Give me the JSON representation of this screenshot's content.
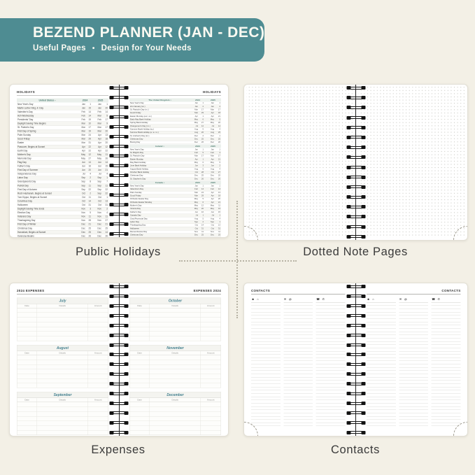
{
  "banner": {
    "title": "BEZEND PLANNER (JAN - DEC)",
    "subtitle_left": "Useful Pages",
    "bullet": "•",
    "subtitle_right": "Design for Your Needs"
  },
  "captions": {
    "holidays": "Public Holidays",
    "dotted": "Dotted Note Pages",
    "expenses": "Expenses",
    "contacts": "Contacts"
  },
  "holidays_spread": {
    "page_title": "HOLIDAYS",
    "sections": {
      "us": {
        "region": "United States",
        "years": [
          "2024",
          "2025"
        ],
        "rows": [
          [
            "New Year's Day",
            "Jan",
            "1",
            "Jan",
            "1"
          ],
          [
            "Martin Luther King Jr. Day",
            "Jan",
            "15",
            "Jan",
            "20"
          ],
          [
            "Valentine's Day",
            "Feb",
            "14",
            "Feb",
            "14"
          ],
          [
            "Ash Wednesday",
            "Feb",
            "14",
            "Mar",
            "5"
          ],
          [
            "Presidents' Day",
            "Feb",
            "19",
            "Feb",
            "17"
          ],
          [
            "Daylight Saving Time Begins",
            "Mar",
            "10",
            "Mar",
            "9"
          ],
          [
            "St. Patrick's Day",
            "Mar",
            "17",
            "Mar",
            "17"
          ],
          [
            "First Day of Spring",
            "Mar",
            "19",
            "Mar",
            "20"
          ],
          [
            "Palm Sunday",
            "Mar",
            "24",
            "Apr",
            "13"
          ],
          [
            "Good Friday",
            "Mar",
            "29",
            "Apr",
            "18"
          ],
          [
            "Easter",
            "Mar",
            "31",
            "Apr",
            "20"
          ],
          [
            "Passover, Begins at Sunset",
            "Apr",
            "22",
            "Apr",
            "12"
          ],
          [
            "Earth Day",
            "Apr",
            "22",
            "Apr",
            "22"
          ],
          [
            "Mother's Day",
            "May",
            "12",
            "May",
            "11"
          ],
          [
            "Memorial Day",
            "May",
            "27",
            "May",
            "26"
          ],
          [
            "Flag Day",
            "Jun",
            "14",
            "Jun",
            "14"
          ],
          [
            "Father's Day",
            "Jun",
            "16",
            "Jun",
            "15"
          ],
          [
            "First Day of Summer",
            "Jun",
            "20",
            "Jun",
            "21"
          ],
          [
            "Independence Day",
            "Jul",
            "4",
            "Jul",
            "4"
          ],
          [
            "Labor Day",
            "Sep",
            "2",
            "Sep",
            "1"
          ],
          [
            "Grandparents Day",
            "Sep",
            "8",
            "Sep",
            "7"
          ],
          [
            "Patriot Day",
            "Sep",
            "11",
            "Sep",
            "11"
          ],
          [
            "First Day of Autumn",
            "Sep",
            "22",
            "Sep",
            "22"
          ],
          [
            "Rosh Hashanah, Begins at Sunset",
            "Oct",
            "2",
            "Sep",
            "22"
          ],
          [
            "Yom Kippur, Begins at Sunset",
            "Oct",
            "11",
            "Oct",
            "1"
          ],
          [
            "Columbus Day",
            "Oct",
            "14",
            "Oct",
            "13"
          ],
          [
            "Halloween",
            "Oct",
            "31",
            "Oct",
            "31"
          ],
          [
            "Daylight Saving Time Ends",
            "Nov",
            "3",
            "Nov",
            "2"
          ],
          [
            "Election Day",
            "Nov",
            "5",
            "Nov",
            "4"
          ],
          [
            "Veterans Day",
            "Nov",
            "11",
            "Nov",
            "11"
          ],
          [
            "Thanksgiving Day",
            "Nov",
            "28",
            "Nov",
            "27"
          ],
          [
            "First Day of Winter",
            "Dec",
            "21",
            "Dec",
            "21"
          ],
          [
            "Christmas Day",
            "Dec",
            "25",
            "Dec",
            "25"
          ],
          [
            "Hanukkah, Begins at Sunset",
            "Dec",
            "25",
            "Dec",
            "14"
          ],
          [
            "Kwanzaa Begins",
            "Dec",
            "26",
            "Dec",
            "26"
          ],
          [
            "New Year's Eve",
            "Dec",
            "31",
            "Dec",
            "31"
          ]
        ]
      },
      "uk": {
        "region": "The United Kingdom",
        "years": [
          "2024",
          "2025"
        ],
        "rows": [
          [
            "New Year's Day",
            "Jan",
            "1",
            "Jan",
            "1"
          ],
          [
            "2nd January (sc.)",
            "Jan",
            "2",
            "Jan",
            "2"
          ],
          [
            "St. Patrick's Day (n.i.)",
            "Mar",
            "17",
            "Mar",
            "17"
          ],
          [
            "Good Friday",
            "Mar",
            "29",
            "Apr",
            "18"
          ],
          [
            "Easter Monday (exc. sc.)",
            "Apr",
            "1",
            "Apr",
            "21"
          ],
          [
            "Early May Bank Holiday",
            "May",
            "6",
            "May",
            "5"
          ],
          [
            "Spring Bank Holiday",
            "May",
            "27",
            "May",
            "26"
          ],
          [
            "Orangemen's Day (n.i.)",
            "Jul",
            "12",
            "Jul",
            "14"
          ],
          [
            "Summer Bank Holiday (sc.)",
            "Aug",
            "5",
            "Aug",
            "4"
          ],
          [
            "Summer Bank Holiday (e. w. n.i.)",
            "Aug",
            "26",
            "Aug",
            "25"
          ],
          [
            "St. Andrew's Day (sc.)",
            "Dec",
            "2",
            "Dec",
            "1"
          ],
          [
            "Christmas Day",
            "Dec",
            "25",
            "Dec",
            "25"
          ],
          [
            "Boxing Day",
            "Dec",
            "26",
            "Dec",
            "26"
          ]
        ]
      },
      "ireland": {
        "region": "Ireland",
        "years": [
          "2024",
          "2025"
        ],
        "rows": [
          [
            "New Year's Day",
            "Jan",
            "1",
            "Jan",
            "1"
          ],
          [
            "St. Brigid's Day",
            "Feb",
            "5",
            "Feb",
            "3"
          ],
          [
            "St. Patrick's Day",
            "Mar",
            "17",
            "Mar",
            "17"
          ],
          [
            "Easter Monday",
            "Apr",
            "1",
            "Apr",
            "21"
          ],
          [
            "May Bank Holiday",
            "May",
            "6",
            "May",
            "5"
          ],
          [
            "June Bank Holiday",
            "Jun",
            "3",
            "Jun",
            "2"
          ],
          [
            "August Bank Holiday",
            "Aug",
            "5",
            "Aug",
            "4"
          ],
          [
            "October Bank Holiday",
            "Oct",
            "28",
            "Oct",
            "27"
          ],
          [
            "Christmas Day",
            "Dec",
            "25",
            "Dec",
            "25"
          ],
          [
            "St. Stephen's Day",
            "Dec",
            "26",
            "Dec",
            "26"
          ]
        ]
      },
      "canada": {
        "region": "Canada",
        "years": [
          "2024",
          "2025"
        ],
        "rows": [
          [
            "New Year's Day",
            "Jan",
            "1",
            "Jan",
            "1"
          ],
          [
            "Valentine's Day",
            "Feb",
            "14",
            "Feb",
            "14"
          ],
          [
            "Palm Sunday",
            "Mar",
            "24",
            "Apr",
            "13"
          ],
          [
            "Good Friday",
            "Mar",
            "29",
            "Apr",
            "18"
          ],
          [
            "Orthodox Easter Day",
            "May",
            "5",
            "Apr",
            "20"
          ],
          [
            "Orthodox Easter Monday",
            "May",
            "6",
            "Apr",
            "21"
          ],
          [
            "Mother's Day",
            "May",
            "12",
            "May",
            "11"
          ],
          [
            "Victoria Day",
            "May",
            "20",
            "May",
            "19"
          ],
          [
            "Father's Day",
            "Jun",
            "16",
            "Jun",
            "15"
          ],
          [
            "Canada Day",
            "Jul",
            "1",
            "Jul",
            "1"
          ],
          [
            "Civic/Provincial Day",
            "Aug",
            "5",
            "Aug",
            "4"
          ],
          [
            "Labor Day",
            "Sep",
            "2",
            "Sep",
            "1"
          ],
          [
            "Thanksgiving Day",
            "Oct",
            "14",
            "Oct",
            "13"
          ],
          [
            "Halloween",
            "Oct",
            "31",
            "Oct",
            "31"
          ],
          [
            "Remembrance Day",
            "Nov",
            "11",
            "Nov",
            "11"
          ],
          [
            "Christmas Day",
            "Dec",
            "25",
            "Dec",
            "25"
          ],
          [
            "Boxing Day",
            "Dec",
            "26",
            "Dec",
            "26"
          ],
          [
            "New Year's Eve",
            "Dec",
            "31",
            "Dec",
            "31"
          ]
        ]
      }
    }
  },
  "expenses_spread": {
    "left_header": "2024 EXPENSES",
    "right_header": "EXPENSES 2024",
    "columns": [
      "Date",
      "Details",
      "Amount"
    ],
    "left_months": [
      "July",
      "August",
      "September"
    ],
    "right_months": [
      "October",
      "November",
      "December"
    ],
    "rows_per_month": 7
  },
  "contacts_spread": {
    "left_header": "CONTACTS",
    "right_header": "CONTACTS",
    "columns": [
      {
        "icons": [
          {
            "name": "person-icon",
            "glyph": "☻"
          },
          {
            "name": "home-icon",
            "glyph": "⌂"
          }
        ]
      },
      {
        "icons": [
          {
            "name": "envelope-icon",
            "glyph": "✉"
          },
          {
            "name": "at-icon",
            "glyph": "@"
          }
        ]
      },
      {
        "icons": [
          {
            "name": "phone-icon",
            "glyph": "☎"
          },
          {
            "name": "mobile-phone-icon",
            "glyph": "✆"
          }
        ]
      }
    ]
  },
  "colors": {
    "page_background": "#f3f0e6",
    "banner_background": "#4e8c92",
    "banner_text": "#fbfaf2",
    "accent_teal": "#44808f",
    "region_header_text": "#4d7d72",
    "card_background": "#ffffff"
  }
}
